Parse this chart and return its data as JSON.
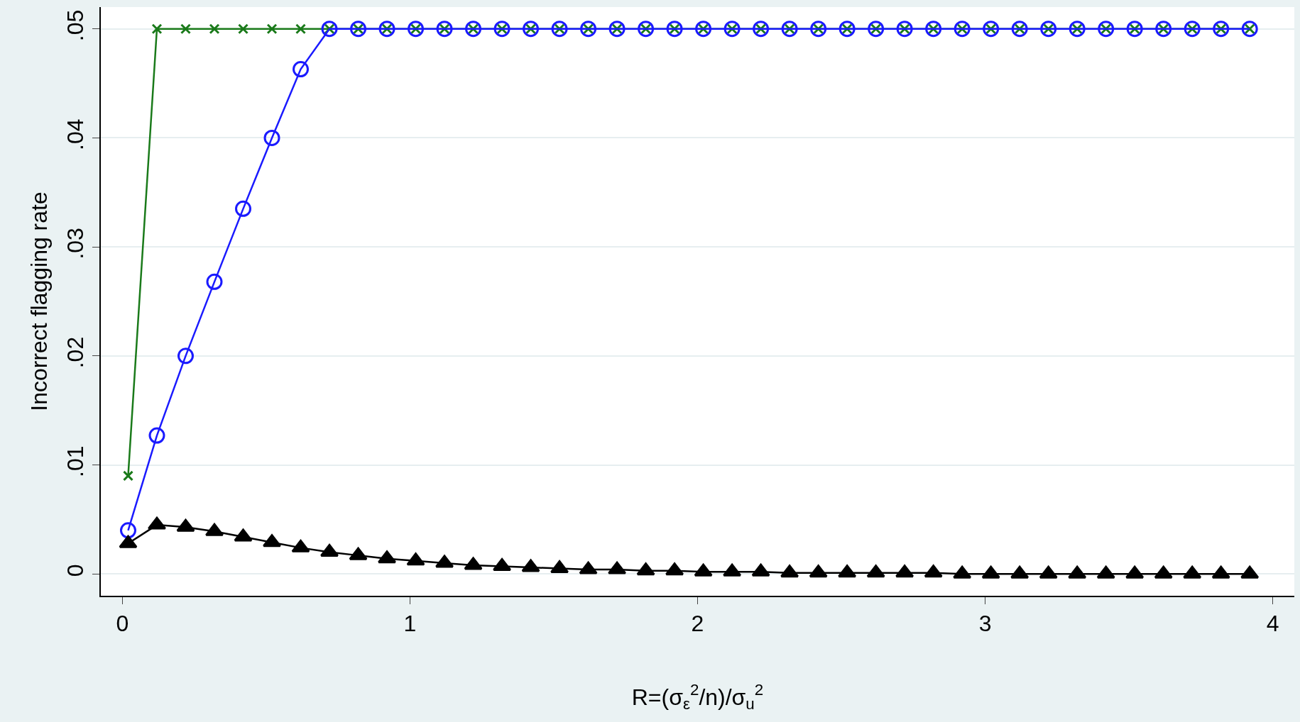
{
  "chart_data": {
    "type": "line",
    "xlabel": "R=(σ$_{ε}$$^{2}$/n)/σ$_{u}$$^{2}$",
    "ylabel": "Incorrect flagging rate",
    "x": [
      0.02,
      0.12,
      0.22,
      0.32,
      0.42,
      0.52,
      0.62,
      0.72,
      0.82,
      0.92,
      1.02,
      1.12,
      1.22,
      1.32,
      1.42,
      1.52,
      1.62,
      1.72,
      1.82,
      1.92,
      2.02,
      2.12,
      2.22,
      2.32,
      2.42,
      2.52,
      2.62,
      2.72,
      2.82,
      2.92,
      3.02,
      3.12,
      3.22,
      3.32,
      3.42,
      3.52,
      3.62,
      3.72,
      3.82,
      3.92
    ],
    "series": [
      {
        "color": "#1a7a1a",
        "marker": "cross",
        "values": [
          0.009,
          0.05,
          0.05,
          0.05,
          0.05,
          0.05,
          0.05,
          0.05,
          0.05,
          0.05,
          0.05,
          0.05,
          0.05,
          0.05,
          0.05,
          0.05,
          0.05,
          0.05,
          0.05,
          0.05,
          0.05,
          0.05,
          0.05,
          0.05,
          0.05,
          0.05,
          0.05,
          0.05,
          0.05,
          0.05,
          0.05,
          0.05,
          0.05,
          0.05,
          0.05,
          0.05,
          0.05,
          0.05,
          0.05,
          0.05
        ]
      },
      {
        "color": "#1a1aff",
        "marker": "circle",
        "values": [
          0.004,
          0.0127,
          0.02,
          0.0268,
          0.0335,
          0.04,
          0.0463,
          0.05,
          0.05,
          0.05,
          0.05,
          0.05,
          0.05,
          0.05,
          0.05,
          0.05,
          0.05,
          0.05,
          0.05,
          0.05,
          0.05,
          0.05,
          0.05,
          0.05,
          0.05,
          0.05,
          0.05,
          0.05,
          0.05,
          0.05,
          0.05,
          0.05,
          0.05,
          0.05,
          0.05,
          0.05,
          0.05,
          0.05,
          0.05,
          0.05
        ]
      },
      {
        "color": "#000000",
        "marker": "triangle",
        "values": [
          0.0028,
          0.0045,
          0.0043,
          0.0039,
          0.0034,
          0.0029,
          0.0024,
          0.002,
          0.0017,
          0.0014,
          0.0012,
          0.001,
          0.0008,
          0.0007,
          0.0006,
          0.0005,
          0.0004,
          0.0004,
          0.0003,
          0.0003,
          0.0002,
          0.0002,
          0.0002,
          0.0001,
          0.0001,
          0.0001,
          0.0001,
          0.0001,
          0.0001,
          0,
          0,
          0,
          0,
          0,
          0,
          0,
          0,
          0,
          0,
          0
        ]
      }
    ],
    "xlim": [
      -0.075,
      4.075
    ],
    "xticks": [
      0,
      1,
      2,
      3,
      4
    ],
    "ylim": [
      -0.002,
      0.052
    ],
    "yticks": [
      {
        "value": 0,
        "label": "0"
      },
      {
        "value": 0.01,
        "label": ".01"
      },
      {
        "value": 0.02,
        "label": ".02"
      },
      {
        "value": 0.03,
        "label": ".03"
      },
      {
        "value": 0.04,
        "label": ".04"
      },
      {
        "value": 0.05,
        "label": ".05"
      }
    ],
    "grid": "y",
    "line_style": "solid"
  }
}
